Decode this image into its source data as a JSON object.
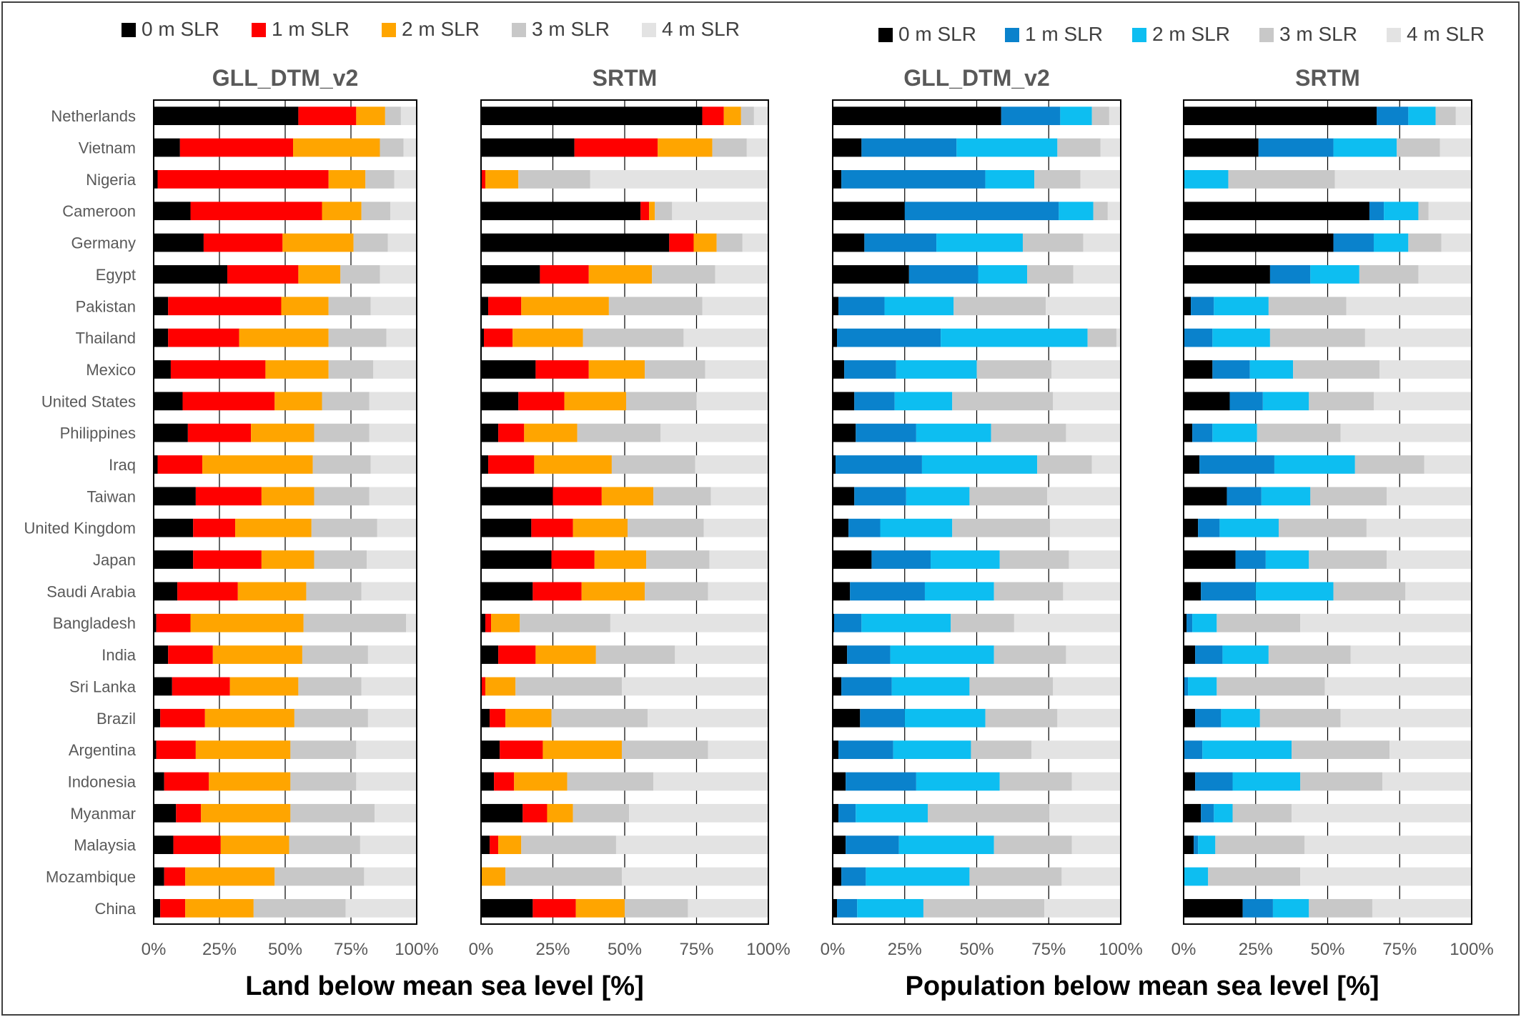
{
  "legends": {
    "land": [
      "0 m SLR",
      "1 m SLR",
      "2 m SLR",
      "3 m SLR",
      "4 m SLR"
    ],
    "population": [
      "0 m SLR",
      "1 m SLR",
      "2 m SLR",
      "3 m SLR",
      "4 m SLR"
    ]
  },
  "x_axis_label_land": "Land below mean sea level [%]",
  "x_axis_label_population": "Population below mean sea level [%]",
  "colors": {
    "land": [
      "#000000",
      "#ff0000",
      "#ffa500",
      "#c8c8c8",
      "#e3e3e3"
    ],
    "population": [
      "#000000",
      "#0a82cc",
      "#0dbef1",
      "#c8c8c8",
      "#e3e3e3"
    ]
  },
  "chart_data": [
    {
      "type": "bar",
      "orientation": "horizontal",
      "stacked": true,
      "title": "GLL_DTM_v2",
      "group": "land",
      "xlim": [
        0,
        100
      ],
      "x_ticks": [
        "0%",
        "25%",
        "50%",
        "75%",
        "100%"
      ],
      "categories": [
        "Netherlands",
        "Vietnam",
        "Nigeria",
        "Cameroon",
        "Germany",
        "Egypt",
        "Pakistan",
        "Thailand",
        "Mexico",
        "United States",
        "Philippines",
        "Iraq",
        "Taiwan",
        "United Kingdom",
        "Japan",
        "Saudi Arabia",
        "Bangladesh",
        "India",
        "Sri Lanka",
        "Brazil",
        "Argentina",
        "Indonesia",
        "Myanmar",
        "Malaysia",
        "Mozambique",
        "China"
      ],
      "series": [
        {
          "name": "0 m SLR",
          "values": [
            55,
            10,
            1.5,
            14,
            19,
            28,
            5.5,
            5.5,
            6.5,
            11,
            13,
            1.5,
            16,
            15,
            15,
            9,
            1,
            5.5,
            7,
            2.5,
            1,
            4,
            8.5,
            7.5,
            4,
            2.5
          ]
        },
        {
          "name": "1 m SLR",
          "values": [
            22,
            43,
            65,
            50,
            30,
            27,
            43,
            27,
            36,
            35,
            24,
            17,
            25,
            16,
            26,
            23,
            13,
            17,
            22,
            17,
            15,
            17,
            9.5,
            18,
            8,
            9.5
          ]
        },
        {
          "name": "2 m SLR",
          "values": [
            11,
            33,
            14,
            15,
            27,
            16,
            18,
            34,
            24,
            18,
            24,
            42,
            20,
            29,
            20,
            26,
            43,
            34,
            26,
            34,
            36,
            31,
            34,
            26,
            34,
            26
          ]
        },
        {
          "name": "3 m SLR",
          "values": [
            6,
            9,
            11,
            11,
            13,
            15,
            16,
            22,
            17,
            18,
            21,
            22,
            21,
            25,
            20,
            21,
            39,
            25,
            24,
            28,
            25,
            25,
            32,
            27,
            34,
            35
          ]
        },
        {
          "name": "4 m SLR",
          "values": [
            6,
            5,
            8.5,
            10,
            11,
            14,
            17.5,
            11.5,
            16.5,
            18,
            18,
            17.5,
            18,
            15,
            19,
            21,
            4,
            18.5,
            21,
            18.5,
            23,
            23,
            16,
            21.5,
            20,
            27
          ]
        }
      ]
    },
    {
      "type": "bar",
      "orientation": "horizontal",
      "stacked": true,
      "title": "SRTM",
      "group": "land",
      "xlim": [
        0,
        100
      ],
      "x_ticks": [
        "0%",
        "25%",
        "50%",
        "75%",
        "100%"
      ],
      "categories": [
        "Netherlands",
        "Vietnam",
        "Nigeria",
        "Cameroon",
        "Germany",
        "Egypt",
        "Pakistan",
        "Thailand",
        "Mexico",
        "United States",
        "Philippines",
        "Iraq",
        "Taiwan",
        "United Kingdom",
        "Japan",
        "Saudi Arabia",
        "Bangladesh",
        "India",
        "Sri Lanka",
        "Brazil",
        "Argentina",
        "Indonesia",
        "Myanmar",
        "Malaysia",
        "Mozambique",
        "China"
      ],
      "series": [
        {
          "name": "0 m SLR",
          "values": [
            77,
            32.5,
            0,
            55.5,
            65.5,
            20.5,
            2.5,
            1,
            19,
            13,
            6,
            2.5,
            25,
            17.5,
            24.5,
            18,
            1.5,
            6,
            0,
            3,
            6.5,
            4.5,
            14.5,
            3,
            0,
            18
          ]
        },
        {
          "name": "1 m SLR",
          "values": [
            7.5,
            29,
            1.5,
            3,
            8.5,
            17,
            11.5,
            10,
            18.5,
            16,
            9,
            16,
            17,
            14.5,
            15,
            17,
            2,
            13,
            1.5,
            5.5,
            15,
            7,
            8.5,
            3,
            0,
            15
          ]
        },
        {
          "name": "2 m SLR",
          "values": [
            6,
            19,
            11.5,
            2,
            8,
            22,
            30.5,
            24.5,
            19.5,
            21.5,
            18.5,
            27,
            18,
            19,
            18,
            22,
            10,
            21,
            10.5,
            16,
            27.5,
            18.5,
            9,
            8,
            8.5,
            17
          ]
        },
        {
          "name": "3 m SLR",
          "values": [
            4.5,
            12,
            25,
            6,
            9,
            22,
            32.5,
            35,
            21,
            24.5,
            29,
            29,
            20,
            26.5,
            22,
            22,
            31.5,
            27.5,
            37,
            33.5,
            30,
            30,
            19.5,
            33,
            40.5,
            22
          ]
        },
        {
          "name": "4 m SLR",
          "values": [
            5,
            7.5,
            62,
            33.5,
            9,
            18.5,
            23,
            29.5,
            22,
            25,
            37.5,
            25.5,
            20,
            22.5,
            20.5,
            21,
            55,
            32.5,
            51,
            42,
            21,
            40,
            48.5,
            53,
            51,
            28
          ]
        }
      ]
    },
    {
      "type": "bar",
      "orientation": "horizontal",
      "stacked": true,
      "title": "GLL_DTM_v2",
      "group": "population",
      "xlim": [
        0,
        100
      ],
      "x_ticks": [
        "0%",
        "25%",
        "50%",
        "75%",
        "100%"
      ],
      "categories": [
        "Netherlands",
        "Vietnam",
        "Nigeria",
        "Cameroon",
        "Germany",
        "Egypt",
        "Pakistan",
        "Thailand",
        "Mexico",
        "United States",
        "Philippines",
        "Iraq",
        "Taiwan",
        "United Kingdom",
        "Japan",
        "Saudi Arabia",
        "Bangladesh",
        "India",
        "Sri Lanka",
        "Brazil",
        "Argentina",
        "Indonesia",
        "Myanmar",
        "Malaysia",
        "Mozambique",
        "China"
      ],
      "series": [
        {
          "name": "0 m SLR",
          "values": [
            58.5,
            10,
            3,
            25,
            11,
            26.5,
            2,
            1.5,
            4,
            7.5,
            8,
            1,
            7.5,
            5.5,
            13.5,
            6,
            0.5,
            5,
            3,
            9.5,
            2,
            4.5,
            2,
            4.5,
            3,
            1.5
          ]
        },
        {
          "name": "1 m SLR",
          "values": [
            20.5,
            33,
            50,
            53.5,
            25,
            24,
            16,
            36,
            18,
            14,
            21,
            30,
            18,
            11,
            20.5,
            26,
            9.5,
            15,
            17.5,
            15.5,
            19,
            24.5,
            6,
            18.5,
            8.5,
            7
          ]
        },
        {
          "name": "2 m SLR",
          "values": [
            11,
            35,
            17,
            12,
            30,
            17,
            24,
            51,
            28,
            20,
            26,
            40,
            22,
            25,
            24,
            24,
            31,
            36,
            27,
            28,
            27,
            29,
            25,
            33,
            36,
            23
          ]
        },
        {
          "name": "3 m SLR",
          "values": [
            6,
            15,
            16,
            5,
            21,
            16,
            32,
            10,
            26,
            35,
            26,
            19,
            27,
            34,
            24,
            24,
            22,
            25,
            29,
            25,
            21,
            25,
            42,
            27,
            32,
            42
          ]
        },
        {
          "name": "4 m SLR",
          "values": [
            4,
            7,
            14,
            4.5,
            13,
            16.5,
            26,
            1.5,
            24,
            23.5,
            19,
            10,
            25.5,
            24.5,
            18,
            20,
            37,
            19,
            23.5,
            22,
            31,
            17,
            25,
            17,
            20.5,
            26.5
          ]
        }
      ]
    },
    {
      "type": "bar",
      "orientation": "horizontal",
      "stacked": true,
      "title": "SRTM",
      "group": "population",
      "xlim": [
        0,
        100
      ],
      "x_ticks": [
        "0%",
        "25%",
        "50%",
        "75%",
        "100%"
      ],
      "categories": [
        "Netherlands",
        "Vietnam",
        "Nigeria",
        "Cameroon",
        "Germany",
        "Egypt",
        "Pakistan",
        "Thailand",
        "Mexico",
        "United States",
        "Philippines",
        "Iraq",
        "Taiwan",
        "United Kingdom",
        "Japan",
        "Saudi Arabia",
        "Bangladesh",
        "India",
        "Sri Lanka",
        "Brazil",
        "Argentina",
        "Indonesia",
        "Myanmar",
        "Malaysia",
        "Mozambique",
        "China"
      ],
      "series": [
        {
          "name": "0 m SLR",
          "values": [
            67,
            26,
            0,
            64.5,
            52,
            30,
            2.5,
            0,
            10,
            16,
            3,
            5.5,
            15,
            5,
            18,
            6,
            1,
            4,
            0,
            4,
            0,
            4,
            6,
            3.5,
            0,
            20.5
          ]
        },
        {
          "name": "1 m SLR",
          "values": [
            11,
            26,
            0,
            5,
            14,
            14,
            8,
            10,
            13,
            11.5,
            7,
            26,
            12,
            7.5,
            10.5,
            19,
            2,
            9.5,
            1.5,
            9,
            6.5,
            13,
            4.5,
            1.5,
            0,
            10.5
          ]
        },
        {
          "name": "2 m SLR",
          "values": [
            9.5,
            22,
            15.5,
            12,
            12,
            17,
            19,
            20,
            15,
            16,
            15.5,
            28,
            17,
            20.5,
            15,
            27,
            8.5,
            16,
            10,
            13.5,
            31,
            23.5,
            6.5,
            6,
            8.5,
            12.5
          ]
        },
        {
          "name": "3 m SLR",
          "values": [
            7,
            15,
            37,
            3.5,
            11.5,
            20.5,
            27,
            33,
            30,
            22.5,
            29,
            24,
            26.5,
            30.5,
            27,
            25,
            29,
            28.5,
            37.5,
            28,
            34,
            28.5,
            20.5,
            31,
            32,
            22
          ]
        },
        {
          "name": "4 m SLR",
          "values": [
            5.5,
            11,
            47.5,
            15,
            10.5,
            18.5,
            43.5,
            37,
            32,
            34,
            45.5,
            16.5,
            29.5,
            36.5,
            29.5,
            23,
            59.5,
            42,
            51,
            45.5,
            28.5,
            31,
            62.5,
            58,
            59.5,
            34.5
          ]
        }
      ]
    }
  ]
}
